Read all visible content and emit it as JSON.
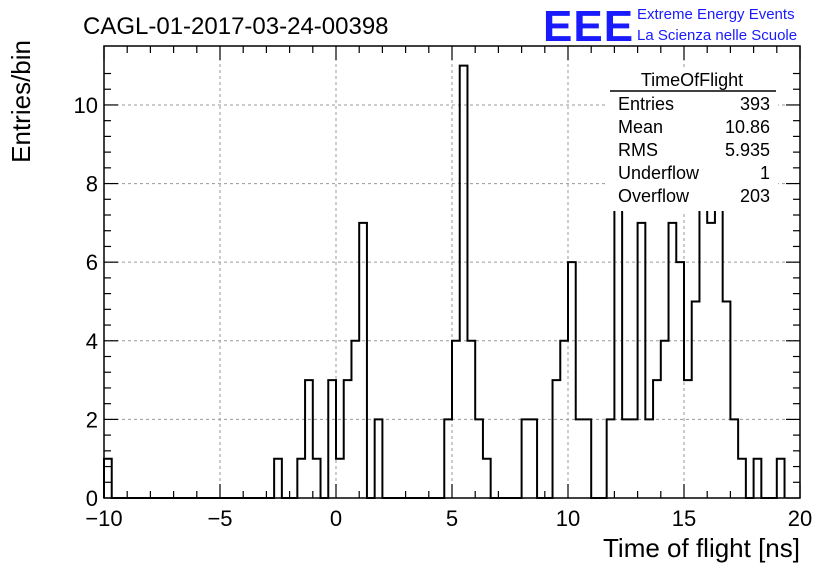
{
  "header": {
    "run_title": "CAGL-01-2017-03-24-00398",
    "logo_text": "EEE",
    "logo_line1": "Extreme Energy Events",
    "logo_line2": "La Scienza nelle Scuole"
  },
  "colors": {
    "logo_blue": "#1a1aff",
    "grid": "#9a9a9a",
    "line": "#000000"
  },
  "stats_box": {
    "title": "TimeOfFlight",
    "rows": [
      {
        "label": "Entries",
        "value": "393"
      },
      {
        "label": "Mean",
        "value": "10.86"
      },
      {
        "label": "RMS",
        "value": "5.935"
      },
      {
        "label": "Underflow",
        "value": "1"
      },
      {
        "label": "Overflow",
        "value": "203"
      }
    ]
  },
  "chart_data": {
    "type": "histogram",
    "xlabel": "Time of flight [ns]",
    "ylabel": "Entries/bin",
    "xlim": [
      -10,
      20
    ],
    "ylim": [
      0,
      11.5
    ],
    "xticks": [
      -10,
      -5,
      0,
      5,
      10,
      15,
      20
    ],
    "yticks": [
      0,
      2,
      4,
      6,
      8,
      10
    ],
    "grid": true,
    "bin_width": 0.3333,
    "bin_edges_start": -10,
    "values": [
      1,
      0,
      0,
      0,
      0,
      0,
      0,
      0,
      0,
      0,
      0,
      0,
      0,
      0,
      0,
      0,
      0,
      0,
      0,
      0,
      0,
      0,
      1,
      0,
      0,
      1,
      3,
      1,
      0,
      3,
      1,
      3,
      4,
      7,
      0,
      2,
      0,
      0,
      0,
      0,
      0,
      0,
      0,
      0,
      2,
      4,
      11,
      4,
      2,
      1,
      0,
      0,
      0,
      0,
      2,
      2,
      0,
      0,
      3,
      4,
      6,
      2,
      2,
      0,
      0,
      2,
      9,
      2,
      2,
      7,
      2,
      3,
      4,
      7,
      6,
      3,
      5,
      8,
      7,
      9,
      5,
      2,
      1,
      0,
      1,
      0,
      0,
      1
    ]
  }
}
